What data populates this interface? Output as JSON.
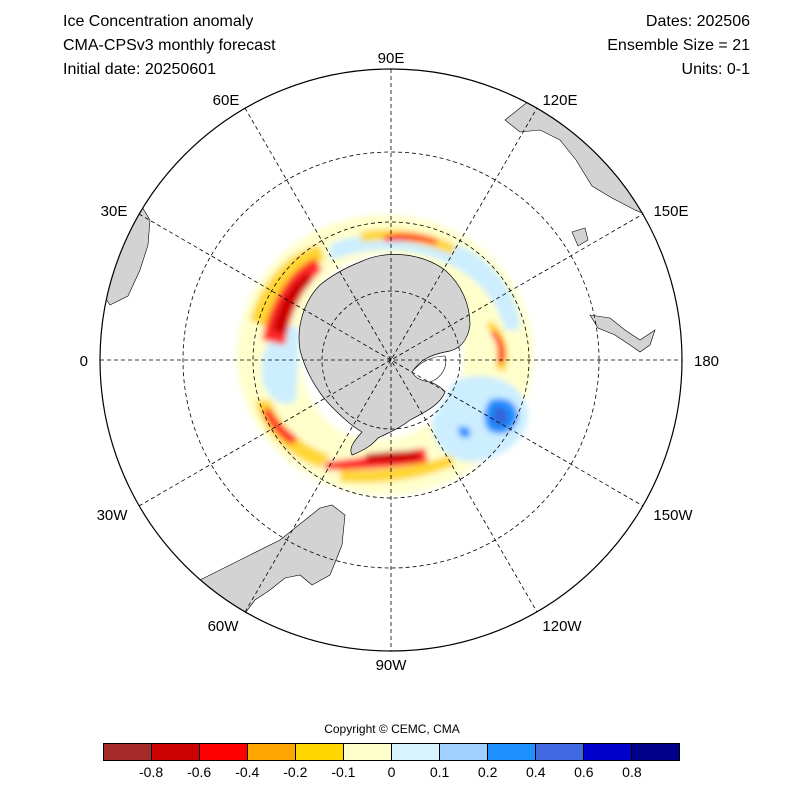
{
  "header": {
    "title": "Ice Concentration anomaly",
    "subtitle": "CMA-CPSv3 monthly forecast",
    "initial_date": "Initial date: 20250601",
    "dates": "Dates: 202506",
    "ensemble": "Ensemble Size = 21",
    "units": "Units: 0-1"
  },
  "map": {
    "projection": "south-polar-stereographic",
    "longitude_labels": {
      "lon_90E": "90E",
      "lon_120E": "120E",
      "lon_150E": "150E",
      "lon_180": "180",
      "lon_150W": "150W",
      "lon_120W": "120W",
      "lon_90W": "90W",
      "lon_60W": "60W",
      "lon_30W": "30W",
      "lon_0": "0",
      "lon_30E": "30E",
      "lon_60E": "60E"
    },
    "land_color": "#d3d3d3",
    "colors": {
      "strong_negative": "#cc0000",
      "negative": "#ff2a2a",
      "weak_negative": "#ffd633",
      "near_zero_negative": "#ffffcc",
      "weak_positive": "#cceeff",
      "positive": "#1e90ff",
      "strong_positive": "#3366dd"
    }
  },
  "copyright": "Copyright © CEMC, CMA",
  "colorbar": {
    "colors": [
      "#a52a2a",
      "#cc0000",
      "#ff0000",
      "#ffa500",
      "#ffd700",
      "#ffffcc",
      "#d7f3ff",
      "#9fd1ff",
      "#1e90ff",
      "#4169e1",
      "#0000cd",
      "#00008b"
    ],
    "labels": [
      "-0.8",
      "-0.6",
      "-0.4",
      "-0.2",
      "-0.1",
      "0",
      "0.1",
      "0.2",
      "0.4",
      "0.6",
      "0.8"
    ]
  }
}
